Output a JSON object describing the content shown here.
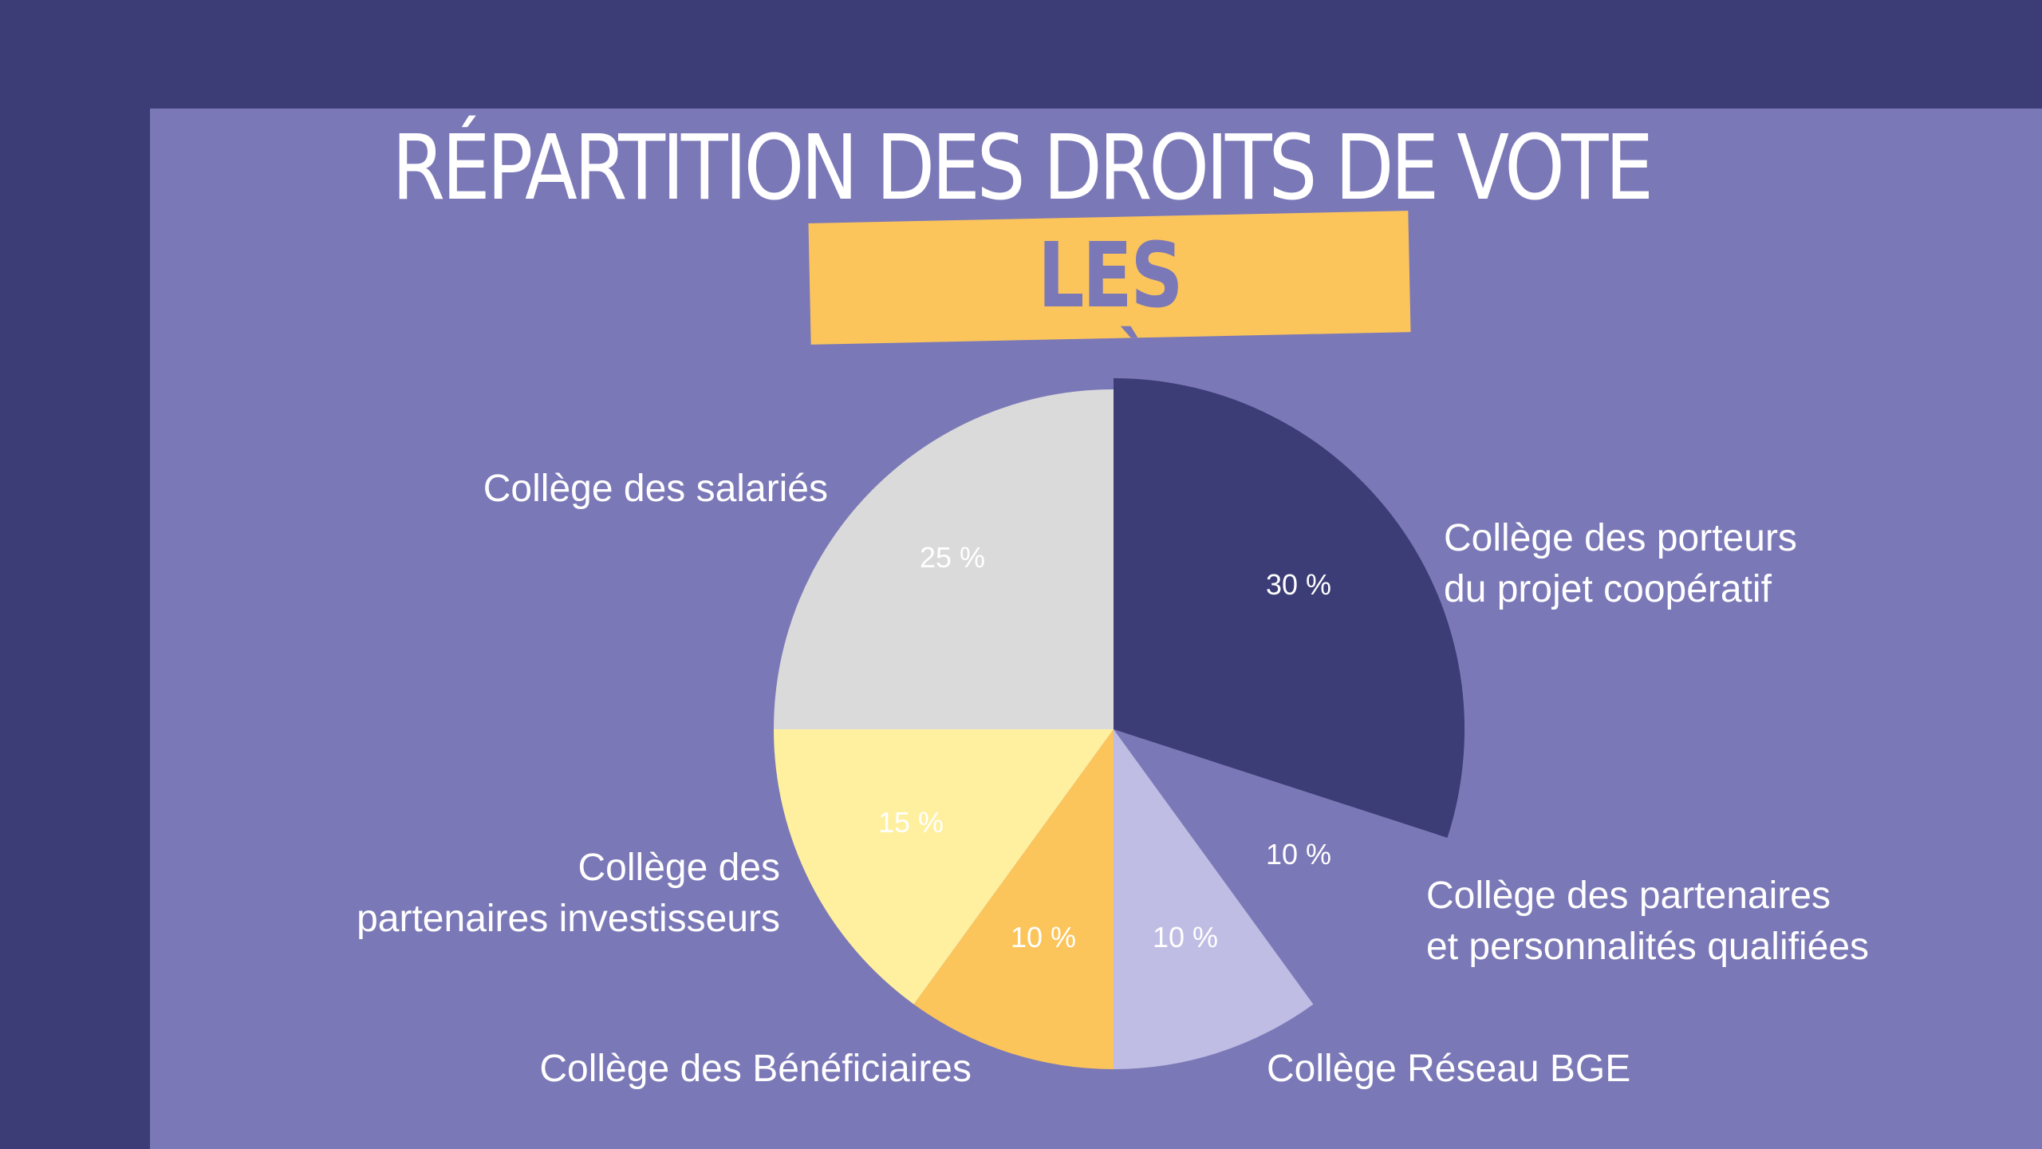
{
  "header": {
    "title": "RÉPARTITION DES DROITS DE VOTE",
    "subtitle": "LES COLLÈGES"
  },
  "colors": {
    "background": "#3c3c76",
    "panel": "#7b78b7",
    "highlight": "#fbc55c"
  },
  "chart_data": {
    "type": "pie",
    "title": "RÉPARTITION DES DROITS DE VOTE",
    "subtitle": "LES COLLÈGES",
    "slices": [
      {
        "label": [
          "Collège des porteurs",
          "du projet coopératif"
        ],
        "value": 30,
        "display": "30 %",
        "color": "#3c3c76",
        "exploded": true
      },
      {
        "label": [
          "Collège des partenaires",
          "et personnalités qualifiées"
        ],
        "value": 10,
        "display": "10 %",
        "color": "#7b78b7"
      },
      {
        "label": [
          "Collège Réseau BGE"
        ],
        "value": 10,
        "display": "10 %",
        "color": "#bfbde3"
      },
      {
        "label": [
          "Collège des Bénéficiaires"
        ],
        "value": 10,
        "display": "10 %",
        "color": "#fbc55c"
      },
      {
        "label": [
          "Collège des",
          "partenaires investisseurs"
        ],
        "value": 15,
        "display": "15 %",
        "color": "#fff09f"
      },
      {
        "label": [
          "Collège des salariés"
        ],
        "value": 25,
        "display": "25 %",
        "color": "#dadada"
      }
    ]
  }
}
